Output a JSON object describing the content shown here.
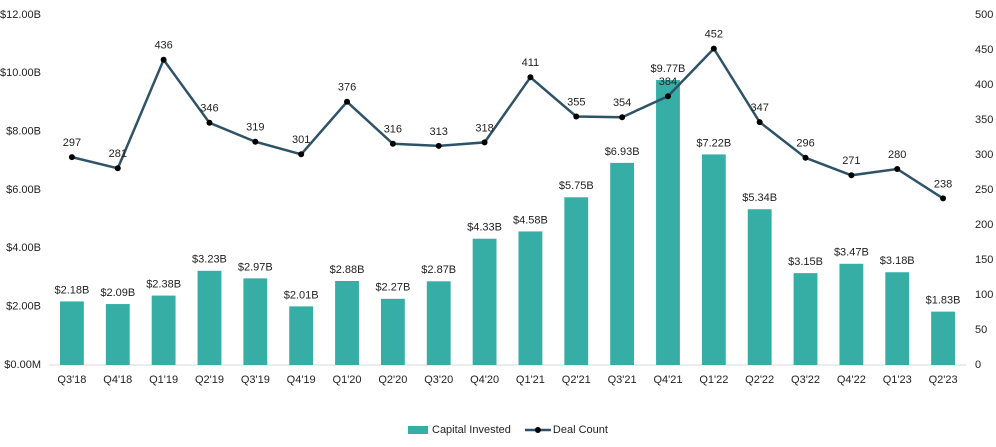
{
  "chart_data": {
    "type": "combo",
    "categories": [
      "Q3'18",
      "Q4'18",
      "Q1'19",
      "Q2'19",
      "Q3'19",
      "Q4'19",
      "Q1'20",
      "Q2'20",
      "Q3'20",
      "Q4'20",
      "Q1'21",
      "Q2'21",
      "Q3'21",
      "Q4'21",
      "Q1'22",
      "Q2'22",
      "Q3'22",
      "Q4'22",
      "Q1'23",
      "Q2'23"
    ],
    "series": [
      {
        "name": "Capital Invested",
        "type": "bar",
        "color": "#36aea6",
        "values": [
          2.18,
          2.09,
          2.38,
          3.23,
          2.97,
          2.01,
          2.88,
          2.27,
          2.87,
          4.33,
          4.58,
          5.75,
          6.93,
          9.77,
          7.22,
          5.34,
          3.15,
          3.47,
          3.18,
          1.83
        ],
        "value_labels": [
          "$2.18B",
          "$2.09B",
          "$2.38B",
          "$3.23B",
          "$2.97B",
          "$2.01B",
          "$2.88B",
          "$2.27B",
          "$2.87B",
          "$4.33B",
          "$4.58B",
          "$5.75B",
          "$6.93B",
          "$9.77B",
          "$7.22B",
          "$5.34B",
          "$3.15B",
          "$3.47B",
          "$3.18B",
          "$1.83B"
        ]
      },
      {
        "name": "Deal Count",
        "type": "line",
        "color": "#2e5266",
        "axis": "y2",
        "values": [
          297,
          281,
          436,
          346,
          319,
          301,
          376,
          316,
          313,
          318,
          411,
          355,
          354,
          384,
          452,
          347,
          296,
          271,
          280,
          238
        ]
      }
    ],
    "ylim": [
      0,
      12
    ],
    "yticks": [
      {
        "value": 0,
        "label": "$0.00M"
      },
      {
        "value": 2,
        "label": "$2.00B"
      },
      {
        "value": 4,
        "label": "$4.00B"
      },
      {
        "value": 6,
        "label": "$6.00B"
      },
      {
        "value": 8,
        "label": "$8.00B"
      },
      {
        "value": 10,
        "label": "$10.00B"
      },
      {
        "value": 12,
        "label": "$12.00B"
      }
    ],
    "y2lim": [
      0,
      500
    ],
    "y2ticks": [
      0,
      50,
      100,
      150,
      200,
      250,
      300,
      350,
      400,
      450,
      500
    ],
    "legend": "bottom"
  }
}
